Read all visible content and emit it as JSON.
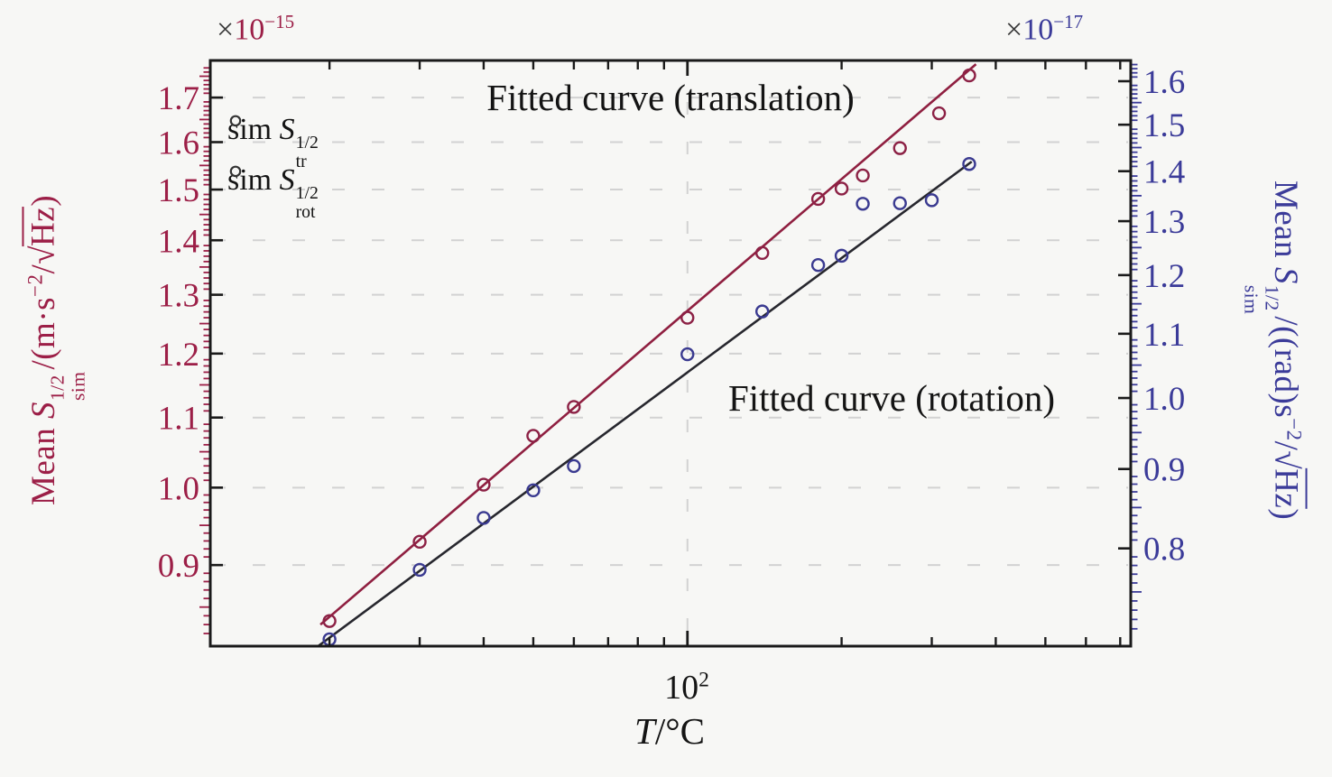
{
  "colors": {
    "background": "#f7f7f5",
    "axis": "#1a1a1a",
    "grid": "#d2d2d2",
    "left_axis": "#9c1f47",
    "right_axis": "#3b3b99",
    "translation_marker": "#8c2145",
    "translation_line": "#8f1f40",
    "rotation_marker": "#3a3a90",
    "rotation_line": "#27272e",
    "legend_marker": "#333333"
  },
  "left_axis": {
    "multiplier": {
      "times": "×",
      "base": "10",
      "exp": "−15"
    },
    "label": {
      "mean": "Mean ",
      "symbol": "S",
      "sup": "1/2",
      "sub": "sim",
      "mid": "/(m·s",
      "exp": "−2",
      "slash": "/",
      "radical": "√",
      "unit": "Hz",
      "close": ")"
    }
  },
  "right_axis": {
    "multiplier": {
      "times": "×",
      "base": "10",
      "exp": "−17"
    },
    "label": {
      "mean": "Mean ",
      "symbol": "S",
      "sup": "1/2",
      "sub": "sim",
      "mid": "/((rad)s",
      "exp": "−2",
      "slash": "/",
      "radical": "√",
      "unit": "Hz",
      "close": ")"
    }
  },
  "x_axis": {
    "tick_base": "10",
    "tick_exp": "2",
    "label_symbol": "T",
    "label_unit": "/°C"
  },
  "legend": {
    "items": [
      {
        "prefix": "sim ",
        "symbol": "S",
        "sup": "1/2",
        "sub": "tr"
      },
      {
        "prefix": "sim ",
        "symbol": "S",
        "sup": "1/2",
        "sub": "rot"
      }
    ]
  },
  "annotations": {
    "translation": "Fitted curve (translation)",
    "rotation": "Fitted curve (rotation)"
  },
  "chart_data": {
    "type": "scatter",
    "title": "",
    "xlabel": "T/°C",
    "x": {
      "scale": "log",
      "lim": [
        11.7,
        734
      ],
      "major_ticks": [
        100
      ],
      "major_tick_labels": [
        "10²"
      ],
      "minor_ticks": [
        20,
        30,
        40,
        50,
        60,
        70,
        80,
        90,
        200,
        300,
        400,
        500,
        600,
        700
      ],
      "gridlines": [
        100
      ]
    },
    "y_left": {
      "scale": "log",
      "label": "Mean S_sim^1/2 / (m·s^-2/√Hz)",
      "unit_multiplier": "1e-15",
      "lim": [
        0.806,
        1.788
      ],
      "major_ticks": [
        "0.9",
        "1.0",
        "1.1",
        "1.2",
        "1.3",
        "1.4",
        "1.5",
        "1.6",
        "1.7"
      ],
      "minor_tick_step": 0.01,
      "gridlines": [
        0.9,
        1.0,
        1.1,
        1.2,
        1.3,
        1.4,
        1.5,
        1.6,
        1.7
      ]
    },
    "y_right": {
      "scale": "log",
      "label": "Mean S_sim^1/2 / ((rad)s^-2/√Hz)",
      "unit_multiplier": "1e-17",
      "lim": [
        0.692,
        1.65
      ],
      "major_ticks": [
        "0.8",
        "0.9",
        "1.0",
        "1.1",
        "1.2",
        "1.3",
        "1.4",
        "1.5",
        "1.6"
      ],
      "minor_tick_step": 0.01
    },
    "series": [
      {
        "name": "sim S_tr^1/2 (translation)",
        "axis": "left",
        "marker": "circle",
        "color": "#8c2145",
        "T": [
          20,
          30,
          40,
          50,
          60,
          100,
          140,
          180,
          200,
          220,
          260,
          310,
          355
        ],
        "values": [
          0.834,
          0.929,
          1.004,
          1.073,
          1.116,
          1.26,
          1.376,
          1.481,
          1.502,
          1.529,
          1.587,
          1.664,
          1.752
        ]
      },
      {
        "name": "sim S_rot^1/2 (rotation)",
        "axis": "right",
        "marker": "circle",
        "color": "#3a3a90",
        "T": [
          20,
          30,
          40,
          50,
          60,
          100,
          140,
          180,
          200,
          220,
          260,
          300,
          355
        ],
        "values": [
          0.699,
          0.775,
          0.837,
          0.872,
          0.904,
          1.067,
          1.137,
          1.218,
          1.235,
          1.334,
          1.335,
          1.341,
          1.415
        ]
      }
    ],
    "fits": [
      {
        "name": "Fitted curve (translation)",
        "axis": "left",
        "color": "#8f1f40",
        "start": {
          "T": 19.2,
          "v": 0.83
        },
        "end": {
          "T": 366,
          "v": 1.779
        }
      },
      {
        "name": "Fitted curve (rotation)",
        "axis": "right",
        "color": "#27272e",
        "start": {
          "T": 19.0,
          "v": 0.692
        },
        "end": {
          "T": 359,
          "v": 1.42
        }
      }
    ],
    "legend_entries": [
      "sim S_tr^1/2",
      "sim S_rot^1/2"
    ],
    "legend_position": "top-left",
    "grid": "dashed, vertical at 10^2 and horizontal at left-axis majors"
  }
}
